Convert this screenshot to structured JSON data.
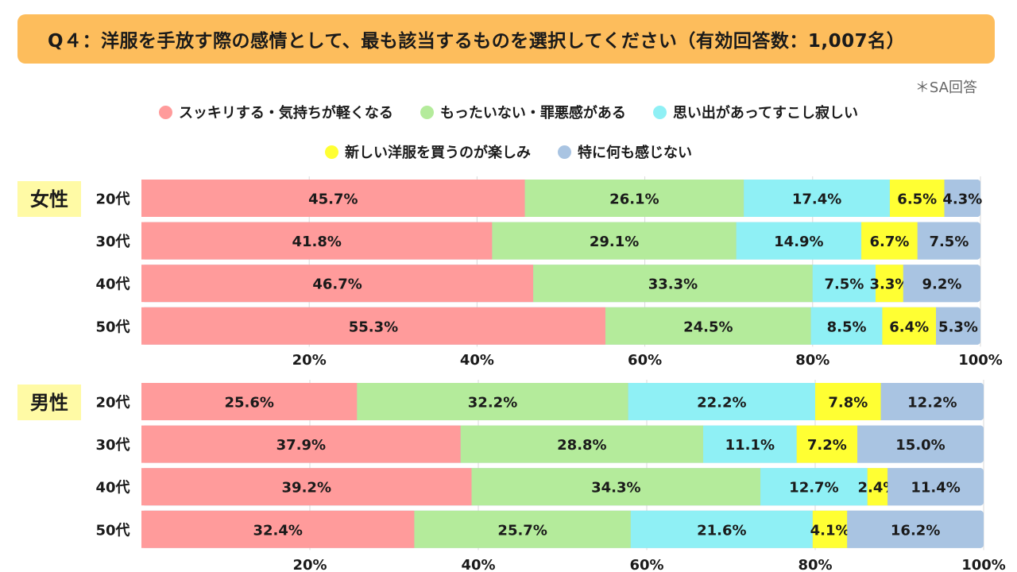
{
  "title": "Q４：洋服を手放す際の感情として、最も該当するものを選択してください（有効回答数：1,007名）",
  "note": "＊SA回答",
  "legend": [
    {
      "label": "スッキリする・気持ちが軽くなる",
      "color": "#ff9b9b"
    },
    {
      "label": "もったいない・罪悪感がある",
      "color": "#b4eb9b"
    },
    {
      "label": "思い出があってすこし寂しい",
      "color": "#8ff0f5"
    },
    {
      "label": "新しい洋服を買うのが楽しみ",
      "color": "#ffff33"
    },
    {
      "label": "特に何も感じない",
      "color": "#a9c4e2"
    }
  ],
  "chart_data": [
    {
      "type": "bar",
      "orientation": "horizontal",
      "stacked": true,
      "group_label": "女性",
      "categories": [
        "20代",
        "30代",
        "40代",
        "50代"
      ],
      "xlim": [
        0,
        100
      ],
      "xticks": [
        "20%",
        "40%",
        "60%",
        "80%",
        "100%"
      ],
      "grid": true,
      "series": [
        {
          "name": "スッキリする・気持ちが軽くなる",
          "values": [
            45.7,
            41.8,
            46.7,
            55.3
          ]
        },
        {
          "name": "もったいない・罪悪感がある",
          "values": [
            26.1,
            29.1,
            33.3,
            24.5
          ]
        },
        {
          "name": "思い出があってすこし寂しい",
          "values": [
            17.4,
            14.9,
            7.5,
            8.5
          ]
        },
        {
          "name": "新しい洋服を買うのが楽しみ",
          "values": [
            6.5,
            6.7,
            3.3,
            6.4
          ]
        },
        {
          "name": "特に何も感じない",
          "values": [
            4.3,
            7.5,
            9.2,
            5.3
          ]
        }
      ]
    },
    {
      "type": "bar",
      "orientation": "horizontal",
      "stacked": true,
      "group_label": "男性",
      "categories": [
        "20代",
        "30代",
        "40代",
        "50代"
      ],
      "xlim": [
        0,
        100
      ],
      "xticks": [
        "20%",
        "40%",
        "60%",
        "80%",
        "100%"
      ],
      "grid": true,
      "series": [
        {
          "name": "スッキリする・気持ちが軽くなる",
          "values": [
            25.6,
            37.9,
            39.2,
            32.4
          ]
        },
        {
          "name": "もったいない・罪悪感がある",
          "values": [
            32.2,
            28.8,
            34.3,
            25.7
          ]
        },
        {
          "name": "思い出があってすこし寂しい",
          "values": [
            22.2,
            11.1,
            12.7,
            21.6
          ]
        },
        {
          "name": "新しい洋服を買うのが楽しみ",
          "values": [
            7.8,
            7.2,
            2.4,
            4.1
          ]
        },
        {
          "name": "特に何も感じない",
          "values": [
            12.2,
            15.0,
            11.4,
            16.2
          ]
        }
      ]
    }
  ]
}
